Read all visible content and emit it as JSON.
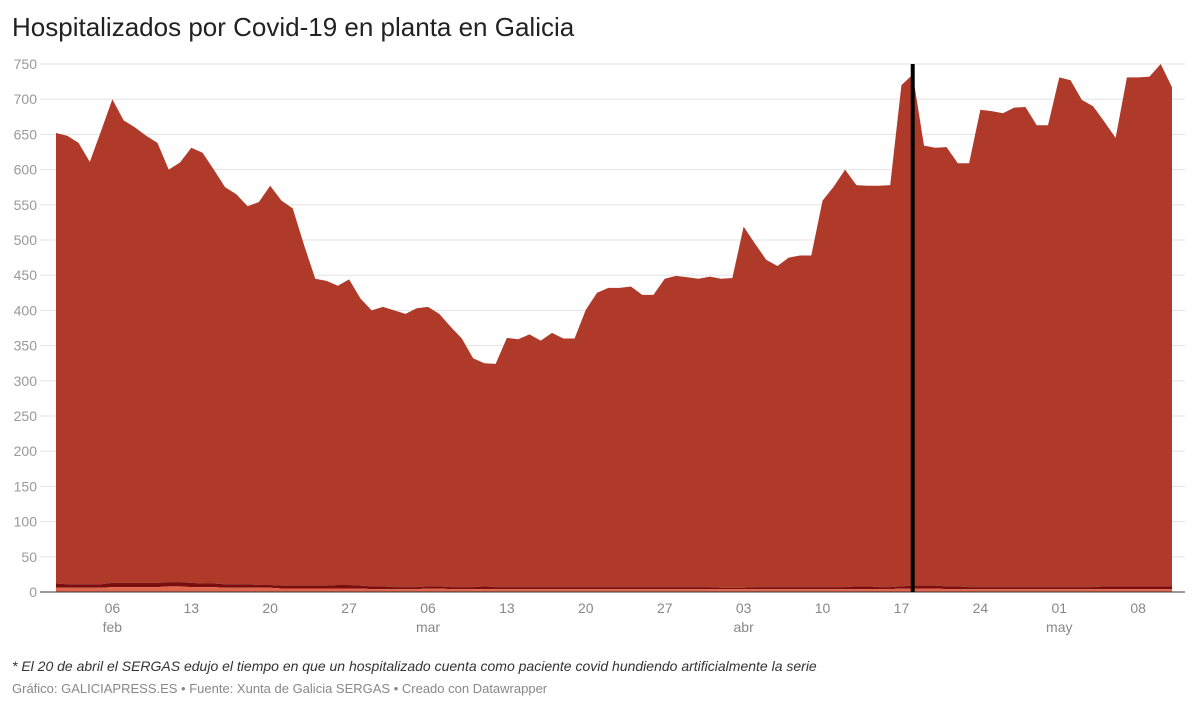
{
  "title": "Hospitalizados por Covid-19 en planta en Galicia",
  "note": "* El 20 de abril el SERGAS edujo el tiempo en que un hospitalizado cuenta como paciente covid hundiendo artificialmente la serie",
  "credit": "Gráfico: GALICIAPRESS.ES • Fuente: Xunta de Galicia SERGAS • Creado con Datawrapper",
  "chart_data": {
    "type": "area",
    "stacked": true,
    "start_date": "01 feb",
    "end_date": "11 may",
    "ylim": [
      0,
      750
    ],
    "yticks": [
      0,
      50,
      100,
      150,
      200,
      250,
      300,
      350,
      400,
      450,
      500,
      550,
      600,
      650,
      700,
      750
    ],
    "xticks": [
      {
        "day": 5,
        "label": "06",
        "month": "feb"
      },
      {
        "day": 12,
        "label": "13",
        "month": ""
      },
      {
        "day": 19,
        "label": "20",
        "month": ""
      },
      {
        "day": 26,
        "label": "27",
        "month": ""
      },
      {
        "day": 33,
        "label": "06",
        "month": "mar"
      },
      {
        "day": 40,
        "label": "13",
        "month": ""
      },
      {
        "day": 47,
        "label": "20",
        "month": ""
      },
      {
        "day": 54,
        "label": "27",
        "month": ""
      },
      {
        "day": 61,
        "label": "03",
        "month": "abr"
      },
      {
        "day": 68,
        "label": "10",
        "month": ""
      },
      {
        "day": 75,
        "label": "17",
        "month": ""
      },
      {
        "day": 82,
        "label": "24",
        "month": ""
      },
      {
        "day": 89,
        "label": "01",
        "month": "may"
      },
      {
        "day": 96,
        "label": "08",
        "month": ""
      }
    ],
    "marker_day": 76,
    "grid": true,
    "colors": {
      "top": "#b03a2a",
      "middle": "#7a0e0e",
      "bottom": "#e0654c",
      "marker": "#000000"
    },
    "total": [
      652,
      648,
      638,
      611,
      655,
      700,
      670,
      660,
      648,
      638,
      600,
      610,
      631,
      624,
      600,
      575,
      565,
      548,
      554,
      577,
      556,
      545,
      493,
      445,
      442,
      435,
      444,
      417,
      400,
      405,
      400,
      395,
      403,
      405,
      395,
      377,
      360,
      332,
      325,
      324,
      361,
      359,
      366,
      357,
      368,
      360,
      360,
      401,
      425,
      432,
      432,
      434,
      422,
      422,
      445,
      449,
      447,
      445,
      448,
      445,
      446,
      519,
      495,
      472,
      463,
      475,
      478,
      478,
      556,
      576,
      600,
      578,
      577,
      577,
      578,
      720,
      735,
      634,
      631,
      632,
      609,
      609,
      685,
      683,
      680,
      688,
      689,
      663,
      663,
      731,
      727,
      699,
      690,
      668,
      645,
      731,
      731,
      732,
      750,
      717
    ],
    "bottom": [
      6,
      6,
      6,
      6,
      6,
      7,
      7,
      7,
      7,
      7,
      8,
      8,
      7,
      7,
      7,
      6,
      6,
      6,
      6,
      6,
      5,
      5,
      5,
      5,
      5,
      5,
      5,
      5,
      4,
      4,
      4,
      4,
      4,
      5,
      5,
      4,
      4,
      4,
      4,
      4,
      4,
      4,
      4,
      4,
      4,
      4,
      4,
      4,
      4,
      4,
      4,
      4,
      4,
      4,
      4,
      4,
      4,
      4,
      4,
      4,
      4,
      4,
      4,
      4,
      4,
      4,
      4,
      4,
      4,
      4,
      4,
      4,
      4,
      4,
      4,
      5,
      5,
      5,
      5,
      4,
      4,
      4,
      4,
      4,
      4,
      4,
      4,
      4,
      4,
      4,
      4,
      4,
      4,
      4,
      4,
      4,
      4,
      4,
      4,
      4
    ],
    "middle": [
      6,
      5,
      5,
      5,
      5,
      6,
      6,
      6,
      6,
      6,
      6,
      6,
      6,
      5,
      5,
      5,
      5,
      5,
      4,
      4,
      4,
      4,
      4,
      4,
      4,
      5,
      5,
      4,
      4,
      4,
      3,
      3,
      3,
      3,
      3,
      3,
      3,
      3,
      4,
      3,
      3,
      3,
      3,
      3,
      3,
      3,
      3,
      3,
      3,
      3,
      3,
      3,
      3,
      3,
      3,
      3,
      3,
      3,
      3,
      2,
      2,
      2,
      3,
      3,
      3,
      3,
      3,
      3,
      3,
      3,
      3,
      4,
      4,
      3,
      3,
      3,
      4,
      4,
      4,
      4,
      4,
      3,
      3,
      3,
      3,
      3,
      3,
      3,
      3,
      3,
      3,
      3,
      3,
      4,
      4,
      4,
      4,
      4,
      4,
      4
    ]
  }
}
